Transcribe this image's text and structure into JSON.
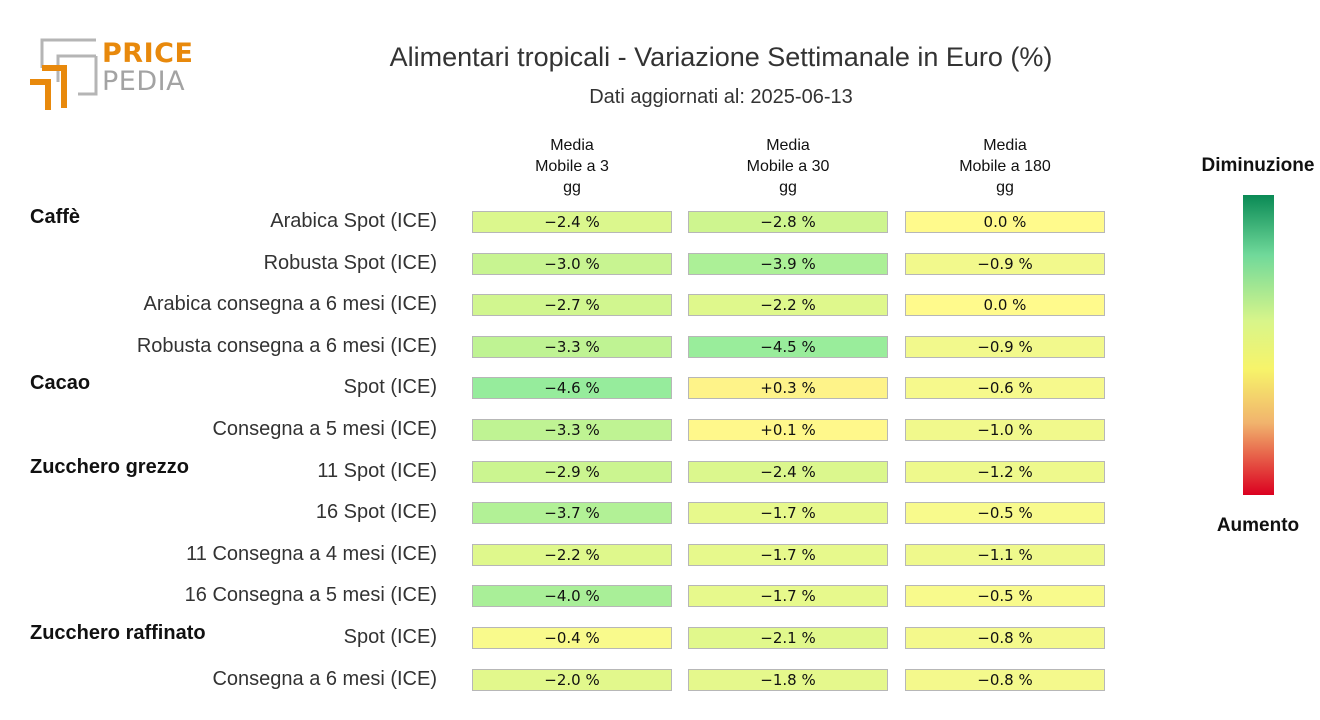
{
  "logo": {
    "word1": "PRICE",
    "word2": "PEDIA"
  },
  "header": {
    "title": "Alimentari tropicali - Variazione Settimanale in Euro (%)",
    "subtitle": "Dati aggiornati al: 2025-06-13"
  },
  "legend": {
    "top": "Diminuzione",
    "bottom": "Aumento"
  },
  "colors": {
    "accent": "#e8890c",
    "logo_gray": "#a3a3a3"
  },
  "chart_data": {
    "type": "heatmap",
    "title": "Alimentari tropicali - Variazione Settimanale in Euro (%)",
    "columns": [
      {
        "lines": [
          "Media",
          "Mobile a 3",
          "gg"
        ]
      },
      {
        "lines": [
          "Media",
          "Mobile a 30",
          "gg"
        ]
      },
      {
        "lines": [
          "Media",
          "Mobile a 180",
          "gg"
        ]
      }
    ],
    "rows": [
      {
        "group": "Caffè",
        "label": "Arabica Spot (ICE)",
        "values": [
          -2.4,
          -2.8,
          0.0
        ],
        "texts": [
          "−2.4 %",
          "−2.8 %",
          "0.0 %"
        ]
      },
      {
        "group": "",
        "label": "Robusta Spot (ICE)",
        "values": [
          -3.0,
          -3.9,
          -0.9
        ],
        "texts": [
          "−3.0 %",
          "−3.9 %",
          "−0.9 %"
        ]
      },
      {
        "group": "",
        "label": "Arabica consegna a 6 mesi (ICE)",
        "values": [
          -2.7,
          -2.2,
          0.0
        ],
        "texts": [
          "−2.7 %",
          "−2.2 %",
          "0.0 %"
        ]
      },
      {
        "group": "",
        "label": "Robusta consegna a 6 mesi (ICE)",
        "values": [
          -3.3,
          -4.5,
          -0.9
        ],
        "texts": [
          "−3.3 %",
          "−4.5 %",
          "−0.9 %"
        ]
      },
      {
        "group": "Cacao",
        "label": "Spot (ICE)",
        "values": [
          -4.6,
          0.3,
          -0.6
        ],
        "texts": [
          "−4.6 %",
          "+0.3 %",
          "−0.6 %"
        ]
      },
      {
        "group": "",
        "label": "Consegna a 5 mesi (ICE)",
        "values": [
          -3.3,
          0.1,
          -1.0
        ],
        "texts": [
          "−3.3 %",
          "+0.1 %",
          "−1.0 %"
        ]
      },
      {
        "group": "Zucchero grezzo",
        "label": "11 Spot (ICE)",
        "values": [
          -2.9,
          -2.4,
          -1.2
        ],
        "texts": [
          "−2.9 %",
          "−2.4 %",
          "−1.2 %"
        ]
      },
      {
        "group": "",
        "label": "16 Spot (ICE)",
        "values": [
          -3.7,
          -1.7,
          -0.5
        ],
        "texts": [
          "−3.7 %",
          "−1.7 %",
          "−0.5 %"
        ]
      },
      {
        "group": "",
        "label": "11 Consegna a 4 mesi (ICE)",
        "values": [
          -2.2,
          -1.7,
          -1.1
        ],
        "texts": [
          "−2.2 %",
          "−1.7 %",
          "−1.1 %"
        ]
      },
      {
        "group": "",
        "label": "16 Consegna a 5 mesi (ICE)",
        "values": [
          -4.0,
          -1.7,
          -0.5
        ],
        "texts": [
          "−4.0 %",
          "−1.7 %",
          "−0.5 %"
        ]
      },
      {
        "group": "Zucchero raffinato",
        "label": "Spot (ICE)",
        "values": [
          -0.4,
          -2.1,
          -0.8
        ],
        "texts": [
          "−0.4 %",
          "−2.1 %",
          "−0.8 %"
        ]
      },
      {
        "group": "",
        "label": "Consegna a 6 mesi (ICE)",
        "values": [
          -2.0,
          -1.8,
          -0.8
        ],
        "texts": [
          "−2.0 %",
          "−1.8 %",
          "−0.8 %"
        ]
      }
    ]
  }
}
